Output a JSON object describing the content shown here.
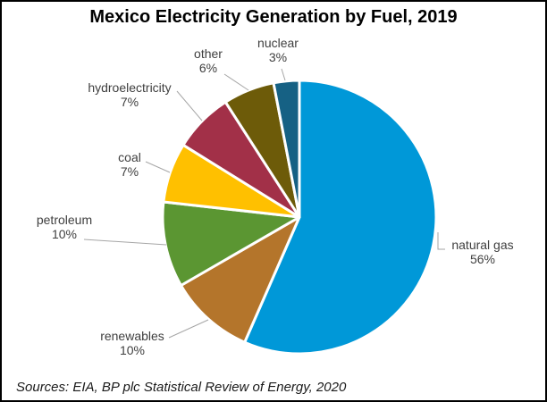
{
  "title": "Mexico Electricity Generation by Fuel, 2019",
  "source": "Sources: EIA, BP plc Statistical Review of Energy, 2020",
  "chart_data": {
    "type": "pie",
    "title": "Mexico Electricity Generation by Fuel, 2019",
    "units": "percent of generation",
    "start_angle_deg": 0,
    "direction": "clockwise",
    "legend": "none",
    "label_style": "outside-callout",
    "slice_border_color": "#ffffff",
    "leader_line_color": "#a6a6a6",
    "slices": [
      {
        "label": "natural gas",
        "value": 56,
        "pct_label": "56%",
        "color": "#0098D8"
      },
      {
        "label": "renewables",
        "value": 10,
        "pct_label": "10%",
        "color": "#B4752B"
      },
      {
        "label": "petroleum",
        "value": 10,
        "pct_label": "10%",
        "color": "#5B9632"
      },
      {
        "label": "coal",
        "value": 7,
        "pct_label": "7%",
        "color": "#FFC000"
      },
      {
        "label": "hydroelectricity",
        "value": 7,
        "pct_label": "7%",
        "color": "#A23048"
      },
      {
        "label": "other",
        "value": 6,
        "pct_label": "6%",
        "color": "#6D5B09"
      },
      {
        "label": "nuclear",
        "value": 3,
        "pct_label": "3%",
        "color": "#166184"
      }
    ]
  }
}
